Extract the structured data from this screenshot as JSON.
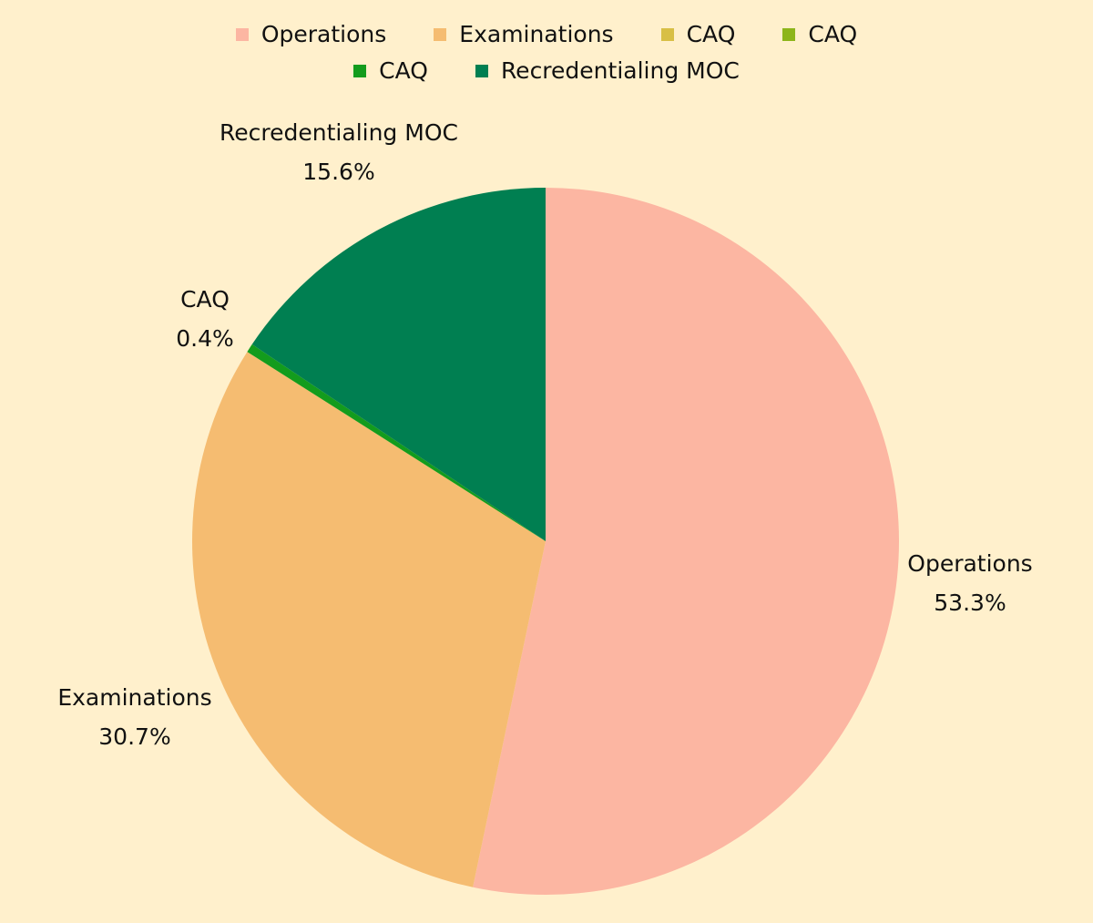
{
  "chart_data": {
    "type": "pie",
    "slices": [
      {
        "label": "Operations",
        "value": 53.3,
        "value_label": "53.3%",
        "color": "#fcb6a2"
      },
      {
        "label": "Examinations",
        "value": 30.7,
        "value_label": "30.7%",
        "color": "#f5bc71"
      },
      {
        "label": "CAQ",
        "value": 0.0,
        "value_label": "",
        "color": "#d8bf45"
      },
      {
        "label": "CAQ",
        "value": 0.0,
        "value_label": "",
        "color": "#8db51a"
      },
      {
        "label": "CAQ",
        "value": 0.4,
        "value_label": "0.4%",
        "color": "#139c1d"
      },
      {
        "label": "Recredentialing MOC",
        "value": 15.6,
        "value_label": "15.6%",
        "color": "#007f51"
      }
    ],
    "legend": {
      "placement": "top",
      "rows": [
        [
          {
            "label": "Operations",
            "color": "#fcb6a2"
          },
          {
            "label": "Examinations",
            "color": "#f5bc71"
          },
          {
            "label": "CAQ",
            "color": "#d8bf45"
          },
          {
            "label": "CAQ",
            "color": "#8db51a"
          }
        ],
        [
          {
            "label": "CAQ",
            "color": "#139c1d"
          },
          {
            "label": "Recredentialing MOC",
            "color": "#007f51"
          }
        ]
      ]
    },
    "start": "12 o'clock",
    "direction": "clockwise",
    "background": "#fff0cc"
  }
}
